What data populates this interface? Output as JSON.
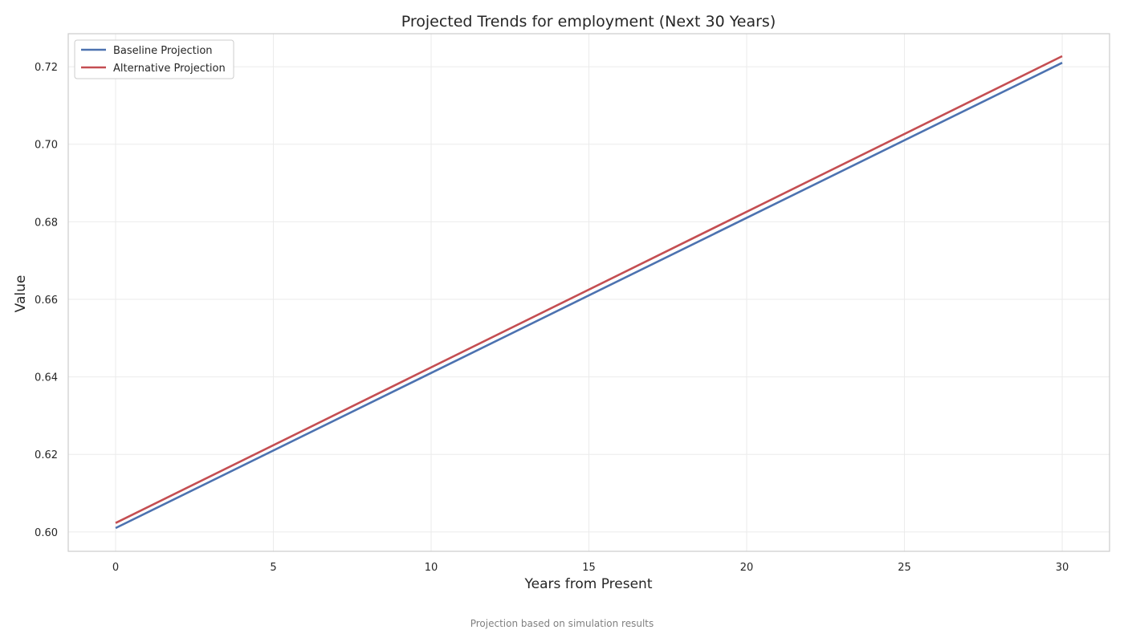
{
  "chart_data": {
    "type": "line",
    "title": "Projected Trends for employment (Next 30 Years)",
    "xlabel": "Years from Present",
    "ylabel": "Value",
    "xlim": [
      -1.5,
      31.5
    ],
    "ylim": [
      0.595,
      0.7285
    ],
    "xticks": [
      0,
      5,
      10,
      15,
      20,
      25,
      30
    ],
    "yticks": [
      0.6,
      0.62,
      0.64,
      0.66,
      0.68,
      0.7,
      0.72
    ],
    "ytick_labels": [
      "0.60",
      "0.62",
      "0.64",
      "0.66",
      "0.68",
      "0.70",
      "0.72"
    ],
    "grid": true,
    "legend_position": "top-left",
    "series": [
      {
        "name": "Baseline Projection",
        "color": "#4c72b0",
        "x": [
          0,
          30
        ],
        "y": [
          0.601,
          0.721
        ]
      },
      {
        "name": "Alternative Projection",
        "color": "#c44e52",
        "x": [
          0,
          30
        ],
        "y": [
          0.6023,
          0.7227
        ]
      }
    ]
  },
  "caption": "Projection based on simulation results"
}
